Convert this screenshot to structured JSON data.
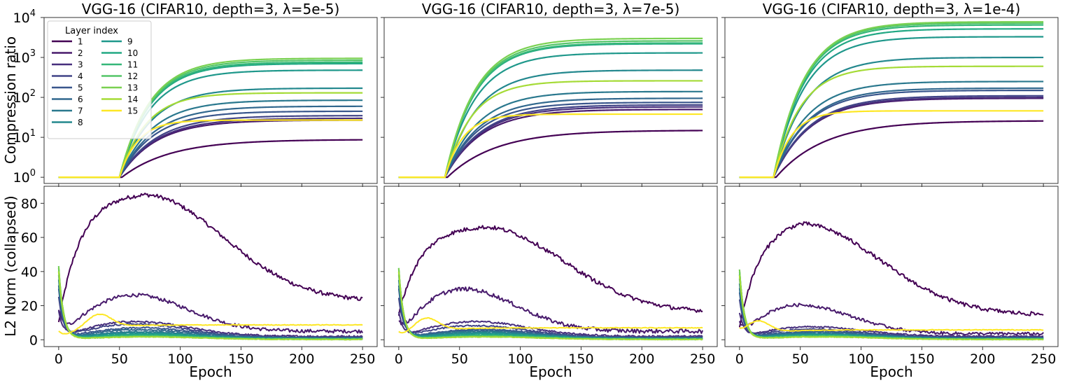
{
  "figure": {
    "ylabel_top": "Compression ratio",
    "ylabel_bottom": "L2 Norm (collapsed)",
    "xlabel": "Epoch",
    "legend_title": "Layer index"
  },
  "layers": [
    "1",
    "2",
    "3",
    "4",
    "5",
    "6",
    "7",
    "8",
    "9",
    "10",
    "11",
    "12",
    "13",
    "14",
    "15"
  ],
  "colors": [
    "#440154",
    "#481a6c",
    "#472f7d",
    "#414487",
    "#39568c",
    "#31688e",
    "#2a788e",
    "#23888e",
    "#1f988b",
    "#22a884",
    "#35b779",
    "#54c568",
    "#7ad151",
    "#a5db36",
    "#fde725"
  ],
  "chart_data": [
    {
      "type": "line",
      "title": "VGG-16 (CIFAR10, depth=3, λ=5e-5)",
      "row": "compression",
      "yscale": "log",
      "ylim": [
        0.7,
        10000
      ],
      "xlim": [
        -12,
        262
      ],
      "yticks": [
        1,
        10,
        100,
        1000,
        10000
      ],
      "ytick_labels": [
        [
          "10",
          "0"
        ],
        [
          "10",
          "1"
        ],
        [
          "10",
          "2"
        ],
        [
          "10",
          "3"
        ],
        [
          "10",
          "4"
        ]
      ],
      "onset_epoch": 50,
      "series": [
        {
          "name": "1",
          "final": 8.8,
          "tau": 40
        },
        {
          "name": "2",
          "final": 27,
          "tau": 30
        },
        {
          "name": "3",
          "final": 30,
          "tau": 30
        },
        {
          "name": "4",
          "final": 35,
          "tau": 30
        },
        {
          "name": "5",
          "final": 45,
          "tau": 28
        },
        {
          "name": "6",
          "final": 60,
          "tau": 28
        },
        {
          "name": "7",
          "final": 85,
          "tau": 27
        },
        {
          "name": "8",
          "final": 170,
          "tau": 26
        },
        {
          "name": "9",
          "final": 480,
          "tau": 25
        },
        {
          "name": "10",
          "final": 700,
          "tau": 25
        },
        {
          "name": "11",
          "final": 760,
          "tau": 25
        },
        {
          "name": "12",
          "final": 850,
          "tau": 25
        },
        {
          "name": "13",
          "final": 950,
          "tau": 25
        },
        {
          "name": "14",
          "final": 130,
          "tau": 22
        },
        {
          "name": "15",
          "final": 27,
          "tau": 15
        }
      ]
    },
    {
      "type": "line",
      "title": "VGG-16 (CIFAR10, depth=3, λ=7e-5)",
      "row": "compression",
      "yscale": "log",
      "ylim": [
        0.7,
        10000
      ],
      "xlim": [
        -12,
        262
      ],
      "yticks": [
        1,
        10,
        100,
        1000,
        10000
      ],
      "onset_epoch": 38,
      "series": [
        {
          "name": "1",
          "final": 15,
          "tau": 40
        },
        {
          "name": "2",
          "final": 50,
          "tau": 30
        },
        {
          "name": "3",
          "final": 58,
          "tau": 30
        },
        {
          "name": "4",
          "final": 65,
          "tau": 30
        },
        {
          "name": "5",
          "final": 75,
          "tau": 28
        },
        {
          "name": "6",
          "final": 95,
          "tau": 28
        },
        {
          "name": "7",
          "final": 140,
          "tau": 27
        },
        {
          "name": "8",
          "final": 480,
          "tau": 26
        },
        {
          "name": "9",
          "final": 1300,
          "tau": 25
        },
        {
          "name": "10",
          "final": 2200,
          "tau": 25
        },
        {
          "name": "11",
          "final": 2300,
          "tau": 25
        },
        {
          "name": "12",
          "final": 2600,
          "tau": 25
        },
        {
          "name": "13",
          "final": 3000,
          "tau": 25
        },
        {
          "name": "14",
          "final": 260,
          "tau": 22
        },
        {
          "name": "15",
          "final": 38,
          "tau": 15
        }
      ]
    },
    {
      "type": "line",
      "title": "VGG-16 (CIFAR10, depth=3, λ=1e-4)",
      "row": "compression",
      "yscale": "log",
      "ylim": [
        0.7,
        10000
      ],
      "xlim": [
        -12,
        262
      ],
      "yticks": [
        1,
        10,
        100,
        1000,
        10000
      ],
      "onset_epoch": 28,
      "series": [
        {
          "name": "1",
          "final": 26,
          "tau": 40
        },
        {
          "name": "2",
          "final": 95,
          "tau": 30
        },
        {
          "name": "3",
          "final": 100,
          "tau": 30
        },
        {
          "name": "4",
          "final": 110,
          "tau": 30
        },
        {
          "name": "5",
          "final": 150,
          "tau": 28
        },
        {
          "name": "6",
          "final": 170,
          "tau": 28
        },
        {
          "name": "7",
          "final": 250,
          "tau": 27
        },
        {
          "name": "8",
          "final": 1000,
          "tau": 26
        },
        {
          "name": "9",
          "final": 3300,
          "tau": 25
        },
        {
          "name": "10",
          "final": 5200,
          "tau": 25
        },
        {
          "name": "11",
          "final": 6500,
          "tau": 25
        },
        {
          "name": "12",
          "final": 7200,
          "tau": 25
        },
        {
          "name": "13",
          "final": 7800,
          "tau": 25
        },
        {
          "name": "14",
          "final": 600,
          "tau": 22
        },
        {
          "name": "15",
          "final": 46,
          "tau": 15
        }
      ]
    },
    {
      "type": "line",
      "row": "norm",
      "ylim": [
        -4,
        90
      ],
      "xlim": [
        -12,
        262
      ],
      "yticks": [
        0,
        20,
        40,
        60,
        80
      ],
      "xticks": [
        0,
        50,
        100,
        150,
        200,
        250
      ],
      "series": [
        {
          "name": "1",
          "start": 10,
          "peak": 85,
          "peak_epoch": 70,
          "final": 22.5
        },
        {
          "name": "2",
          "start": 18,
          "bump": 22,
          "bump_epoch": 60,
          "final": 5
        },
        {
          "name": "3",
          "start": 17,
          "bump": 9,
          "bump_epoch": 60,
          "final": 2
        },
        {
          "name": "4",
          "start": 25,
          "bump": 8,
          "bump_epoch": 60,
          "final": 1.5
        },
        {
          "name": "5",
          "start": 30,
          "bump": 6,
          "bump_epoch": 65,
          "final": 1.2
        },
        {
          "name": "6",
          "start": 32,
          "bump": 5,
          "bump_epoch": 65,
          "final": 1
        },
        {
          "name": "7",
          "start": 35,
          "bump": 4,
          "bump_epoch": 65,
          "final": 0.8
        },
        {
          "name": "8",
          "start": 38,
          "bump": 3.5,
          "bump_epoch": 65,
          "final": 0.6
        },
        {
          "name": "9",
          "start": 40,
          "bump": 3,
          "bump_epoch": 70,
          "final": 0.5
        },
        {
          "name": "10",
          "start": 42,
          "bump": 2.5,
          "bump_epoch": 70,
          "final": 0.4
        },
        {
          "name": "11",
          "start": 42,
          "bump": 2,
          "bump_epoch": 70,
          "final": 0.3
        },
        {
          "name": "12",
          "start": 43,
          "bump": 1.8,
          "bump_epoch": 70,
          "final": 0.3
        },
        {
          "name": "13",
          "start": 43,
          "bump": 1.6,
          "bump_epoch": 70,
          "final": 0.2
        },
        {
          "name": "14",
          "start": 40,
          "bump": 1.5,
          "bump_epoch": 70,
          "final": 0.2
        },
        {
          "name": "15",
          "start": 5,
          "bump": 11,
          "bump_epoch": 33,
          "final": 8.7
        }
      ]
    },
    {
      "type": "line",
      "row": "norm",
      "ylim": [
        -4,
        90
      ],
      "xlim": [
        -12,
        262
      ],
      "yticks": [
        0,
        20,
        40,
        60,
        80
      ],
      "xticks": [
        0,
        50,
        100,
        150,
        200,
        250
      ],
      "series": [
        {
          "name": "1",
          "start": 15,
          "peak": 66,
          "peak_epoch": 70,
          "final": 16
        },
        {
          "name": "2",
          "start": 12,
          "bump": 26,
          "bump_epoch": 50,
          "final": 5
        },
        {
          "name": "3",
          "start": 16,
          "bump": 9,
          "bump_epoch": 60,
          "final": 2
        },
        {
          "name": "4",
          "start": 25,
          "bump": 7,
          "bump_epoch": 60,
          "final": 1.5
        },
        {
          "name": "5",
          "start": 30,
          "bump": 5,
          "bump_epoch": 65,
          "final": 1.2
        },
        {
          "name": "6",
          "start": 32,
          "bump": 4.5,
          "bump_epoch": 65,
          "final": 1
        },
        {
          "name": "7",
          "start": 35,
          "bump": 4,
          "bump_epoch": 65,
          "final": 0.8
        },
        {
          "name": "8",
          "start": 38,
          "bump": 3.5,
          "bump_epoch": 65,
          "final": 0.6
        },
        {
          "name": "9",
          "start": 40,
          "bump": 3,
          "bump_epoch": 70,
          "final": 0.5
        },
        {
          "name": "10",
          "start": 41,
          "bump": 2.5,
          "bump_epoch": 70,
          "final": 0.4
        },
        {
          "name": "11",
          "start": 42,
          "bump": 2,
          "bump_epoch": 70,
          "final": 0.3
        },
        {
          "name": "12",
          "start": 42,
          "bump": 1.8,
          "bump_epoch": 70,
          "final": 0.3
        },
        {
          "name": "13",
          "start": 42,
          "bump": 1.6,
          "bump_epoch": 70,
          "final": 0.2
        },
        {
          "name": "14",
          "start": 40,
          "bump": 1.5,
          "bump_epoch": 70,
          "final": 0.2
        },
        {
          "name": "15",
          "start": 4,
          "bump": 11,
          "bump_epoch": 22,
          "final": 7
        }
      ]
    },
    {
      "type": "line",
      "row": "norm",
      "ylim": [
        -4,
        90
      ],
      "xlim": [
        -12,
        262
      ],
      "yticks": [
        0,
        20,
        40,
        60,
        80
      ],
      "xticks": [
        0,
        50,
        100,
        150,
        200,
        250
      ],
      "series": [
        {
          "name": "1",
          "start": 8,
          "peak": 68,
          "peak_epoch": 50,
          "final": 14.5
        },
        {
          "name": "2",
          "start": 11,
          "bump": 18,
          "bump_epoch": 45,
          "final": 3.5
        },
        {
          "name": "3",
          "start": 16,
          "bump": 6,
          "bump_epoch": 55,
          "final": 2
        },
        {
          "name": "4",
          "start": 24,
          "bump": 5,
          "bump_epoch": 55,
          "final": 1.5
        },
        {
          "name": "5",
          "start": 28,
          "bump": 4,
          "bump_epoch": 60,
          "final": 1.2
        },
        {
          "name": "6",
          "start": 30,
          "bump": 3.5,
          "bump_epoch": 60,
          "final": 1
        },
        {
          "name": "7",
          "start": 33,
          "bump": 3,
          "bump_epoch": 60,
          "final": 0.8
        },
        {
          "name": "8",
          "start": 36,
          "bump": 2.8,
          "bump_epoch": 60,
          "final": 0.6
        },
        {
          "name": "9",
          "start": 38,
          "bump": 2.5,
          "bump_epoch": 65,
          "final": 0.5
        },
        {
          "name": "10",
          "start": 40,
          "bump": 2.2,
          "bump_epoch": 65,
          "final": 0.4
        },
        {
          "name": "11",
          "start": 41,
          "bump": 2,
          "bump_epoch": 65,
          "final": 0.3
        },
        {
          "name": "12",
          "start": 41,
          "bump": 1.8,
          "bump_epoch": 65,
          "final": 0.3
        },
        {
          "name": "13",
          "start": 41,
          "bump": 1.6,
          "bump_epoch": 65,
          "final": 0.2
        },
        {
          "name": "14",
          "start": 38,
          "bump": 1.5,
          "bump_epoch": 65,
          "final": 0.2
        },
        {
          "name": "15",
          "start": 4,
          "bump": 11,
          "bump_epoch": 14,
          "final": 5.8
        }
      ]
    }
  ]
}
